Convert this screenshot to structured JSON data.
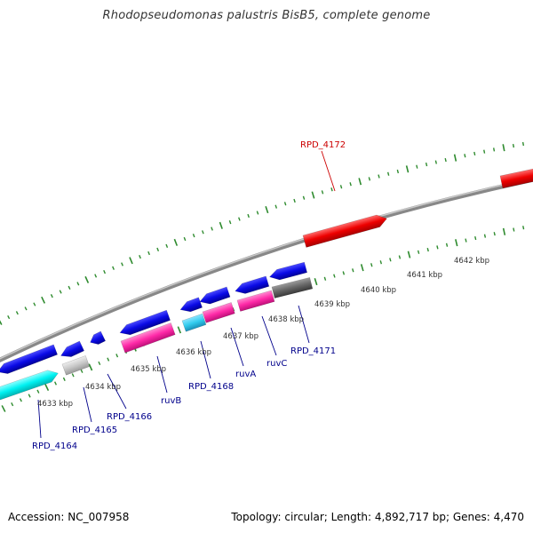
{
  "header": {
    "title": "Rhodopseudomonas palustris BisB5, complete genome"
  },
  "footer": {
    "accession": "Accession: NC_007958",
    "summary": "Topology: circular; Length: 4,892,717 bp; Genes: 4,470"
  },
  "colors": {
    "backbone": "#888888",
    "tick": "#2e8b2e",
    "axis_label": "#333333",
    "gene_label": "#00008b",
    "highlight_label": "#cc0000",
    "blue": "#0a0ae6",
    "cyan": "#00ffff",
    "skyblue": "#33ccee",
    "magenta": "#ff2aa8",
    "red": "#ee0000",
    "gray": "#c8c8c8",
    "darkgray": "#666666"
  },
  "scale": {
    "unit": "kbp",
    "labels": [
      "4633 kbp",
      "4634 kbp",
      "4635 kbp",
      "4636 kbp",
      "4637 kbp",
      "4638 kbp",
      "4639 kbp",
      "4640 kbp",
      "4641 kbp",
      "4642 kbp"
    ]
  },
  "genes": [
    {
      "id": "RPD_4164",
      "color": "cyan"
    },
    {
      "id": "RPD_4165",
      "color": "gray"
    },
    {
      "id": "RPD_4166",
      "color": "blue"
    },
    {
      "id": "ruvB",
      "color": "magenta"
    },
    {
      "id": "RPD_4168",
      "color": "skyblue"
    },
    {
      "id": "ruvA",
      "color": "magenta"
    },
    {
      "id": "ruvC",
      "color": "magenta"
    },
    {
      "id": "RPD_4171",
      "color": "darkgray"
    },
    {
      "id": "RPD_4172",
      "color": "red"
    }
  ]
}
